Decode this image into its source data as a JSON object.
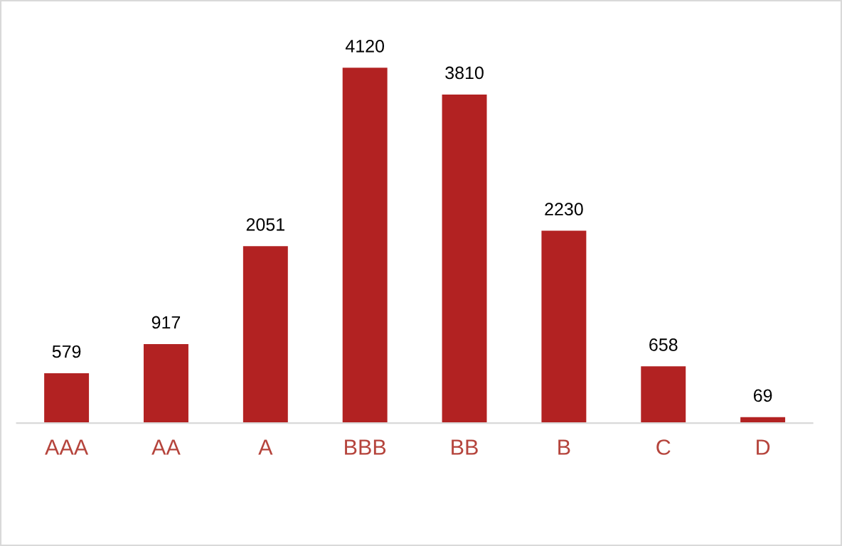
{
  "chart_data": {
    "type": "bar",
    "categories": [
      "AAA",
      "AA",
      "A",
      "BBB",
      "BB",
      "B",
      "C",
      "D"
    ],
    "values": [
      579,
      917,
      2051,
      4120,
      3810,
      2230,
      658,
      69
    ],
    "color": "#b22222",
    "data_labels": true,
    "grid": false,
    "legend": false,
    "tick_labels": "x"
  }
}
